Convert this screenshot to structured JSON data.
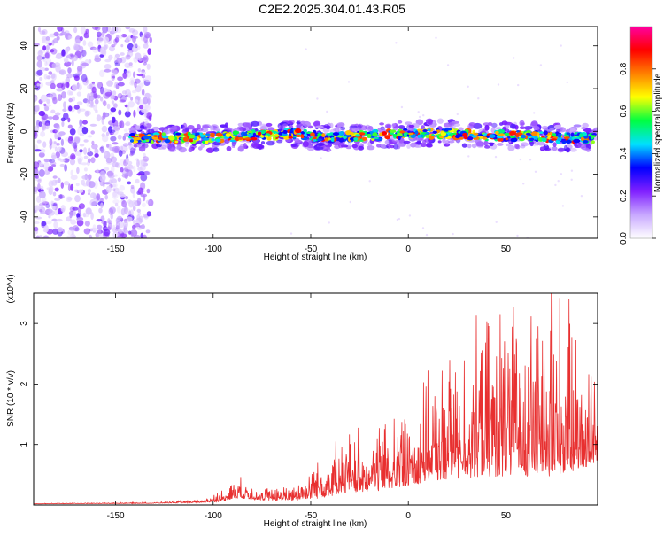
{
  "title": "C2E2.2025.304.01.43.R05",
  "chart_data": [
    {
      "type": "heatmap",
      "name": "spectrogram",
      "xlabel": "Height of straight line (km)",
      "ylabel": "Frequency (Hz)",
      "xlim": [
        -192,
        97
      ],
      "ylim": [
        -50,
        49
      ],
      "xticks": [
        -150,
        -100,
        -50,
        0,
        50
      ],
      "yticks": [
        -40,
        -20,
        0,
        20,
        40
      ],
      "noise_region_x": [
        -192,
        -132
      ],
      "signal_region_x": [
        -142,
        97
      ],
      "ridge": [
        {
          "x": -140,
          "f": -3
        },
        {
          "x": -100,
          "f": -3
        },
        {
          "x": -60,
          "f": -1
        },
        {
          "x": -40,
          "f": -3
        },
        {
          "x": -20,
          "f": -2
        },
        {
          "x": 0,
          "f": -1
        },
        {
          "x": 20,
          "f": -1
        },
        {
          "x": 40,
          "f": -2
        },
        {
          "x": 60,
          "f": -2
        },
        {
          "x": 80,
          "f": -3
        },
        {
          "x": 97,
          "f": -3
        }
      ]
    },
    {
      "type": "colorbar",
      "label": "Normalized spectral amplitude",
      "range": [
        0,
        1
      ],
      "ticks": [
        "0.0",
        "0.2",
        "0.4",
        "0.6",
        "0.8"
      ],
      "tick_values": [
        0,
        0.2,
        0.4,
        0.6,
        0.8
      ],
      "colors": [
        "#ffffff",
        "#c8a8ff",
        "#8020ff",
        "#0000ff",
        "#00e0ff",
        "#00ff40",
        "#ffff00",
        "#ff8000",
        "#ff0000",
        "#ff00a0"
      ]
    },
    {
      "type": "line",
      "name": "snr",
      "xlabel": "Height of straight line (km)",
      "ylabel": "SNR (10 * v/v)",
      "scale_label": "(x10^4)",
      "xlim": [
        -192,
        97
      ],
      "ylim": [
        0,
        3.5
      ],
      "xticks": [
        -150,
        -100,
        -50,
        0,
        50
      ],
      "yticks": [
        1,
        2,
        3
      ],
      "line_color": "#e83030",
      "envelope": [
        {
          "x": -192,
          "base": 0.02,
          "amp": 0.005
        },
        {
          "x": -130,
          "base": 0.03,
          "amp": 0.01
        },
        {
          "x": -105,
          "base": 0.05,
          "amp": 0.03
        },
        {
          "x": -95,
          "base": 0.1,
          "amp": 0.12
        },
        {
          "x": -88,
          "base": 0.18,
          "amp": 0.2
        },
        {
          "x": -75,
          "base": 0.12,
          "amp": 0.12
        },
        {
          "x": -60,
          "base": 0.12,
          "amp": 0.15
        },
        {
          "x": -45,
          "base": 0.25,
          "amp": 0.4
        },
        {
          "x": -30,
          "base": 0.4,
          "amp": 0.55
        },
        {
          "x": -15,
          "base": 0.45,
          "amp": 0.65
        },
        {
          "x": 0,
          "base": 0.6,
          "amp": 0.8
        },
        {
          "x": 15,
          "base": 0.75,
          "amp": 1.0
        },
        {
          "x": 30,
          "base": 0.9,
          "amp": 1.3
        },
        {
          "x": 45,
          "base": 1.0,
          "amp": 1.55
        },
        {
          "x": 60,
          "base": 1.05,
          "amp": 1.65
        },
        {
          "x": 75,
          "base": 1.1,
          "amp": 1.8
        },
        {
          "x": 90,
          "base": 1.0,
          "amp": 1.2
        },
        {
          "x": 97,
          "base": 1.05,
          "amp": 0.9
        }
      ],
      "peak": {
        "x": 73.5,
        "y": 3.5
      }
    }
  ]
}
